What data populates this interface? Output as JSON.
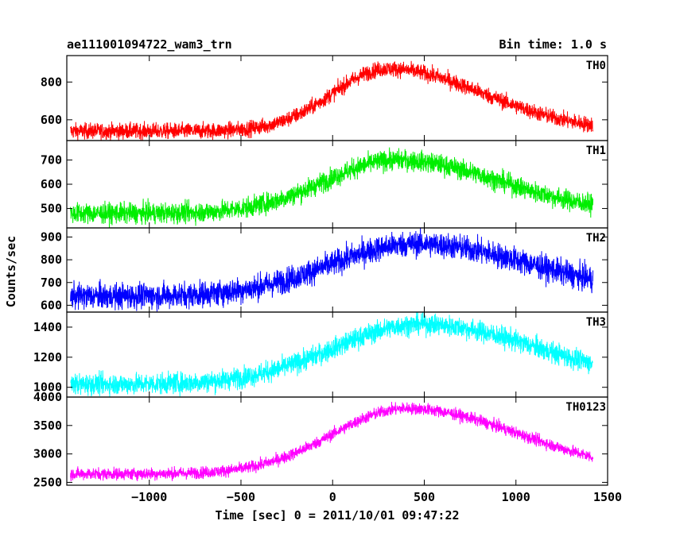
{
  "chart_data": {
    "type": "line",
    "title": "ae111001094722_wam3_trn",
    "bin_time_label": "Bin time: 1.0 s",
    "xlabel": "Time [sec] 0 = 2011/10/01 09:47:22",
    "ylabel": "Counts/sec",
    "xlim": [
      -1450,
      1500
    ],
    "x_ticks": [
      -1000,
      -500,
      0,
      500,
      1000,
      1500
    ],
    "x_tick_labels": [
      "−1000",
      "−500",
      "0",
      "500",
      "1000",
      "1500"
    ],
    "x_range_data": [
      -1430,
      1420
    ],
    "grid": false,
    "panels": [
      {
        "name": "TH0",
        "color": "#ff0000",
        "ylim": [
          490,
          940
        ],
        "y_ticks": [
          600,
          800
        ],
        "y_tick_labels": [
          "600",
          "800"
        ],
        "baseline": 540,
        "peak": 870,
        "peak_x": 300,
        "rise_width": 300,
        "decay_width": 520,
        "noise": 30
      },
      {
        "name": "TH1",
        "color": "#00ee00",
        "ylim": [
          420,
          780
        ],
        "y_ticks": [
          500,
          600,
          700
        ],
        "y_tick_labels": [
          "500",
          "600",
          "700"
        ],
        "baseline": 480,
        "peak": 700,
        "peak_x": 350,
        "rise_width": 390,
        "decay_width": 560,
        "noise": 30
      },
      {
        "name": "TH2",
        "color": "#0000ff",
        "ylim": [
          570,
          940
        ],
        "y_ticks": [
          600,
          700,
          800,
          900
        ],
        "y_tick_labels": [
          "600",
          "700",
          "800",
          "900"
        ],
        "baseline": 640,
        "peak": 870,
        "peak_x": 450,
        "rise_width": 460,
        "decay_width": 640,
        "noise": 40
      },
      {
        "name": "TH3",
        "color": "#00ffff",
        "ylim": [
          935,
          1500
        ],
        "y_ticks": [
          1000,
          1200,
          1400
        ],
        "y_tick_labels": [
          "1000",
          "1200",
          "1400"
        ],
        "baseline": 1020,
        "peak": 1420,
        "peak_x": 480,
        "rise_width": 470,
        "decay_width": 640,
        "noise": 50
      },
      {
        "name": "TH0123",
        "color": "#ff00ff",
        "ylim": [
          2450,
          4000
        ],
        "y_ticks": [
          2500,
          3000,
          3500,
          4000
        ],
        "y_tick_labels": [
          "2500",
          "3000",
          "3500",
          "4000"
        ],
        "baseline": 2650,
        "peak": 3800,
        "peak_x": 400,
        "rise_width": 400,
        "decay_width": 620,
        "noise": 75
      }
    ]
  }
}
